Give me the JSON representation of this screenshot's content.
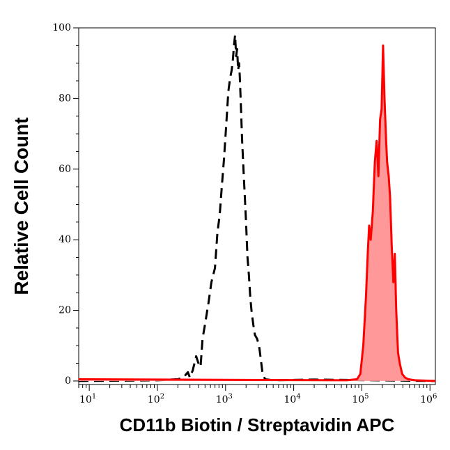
{
  "chart_data": {
    "type": "histogram",
    "title": "",
    "xlabel": "CD11b Biotin / Streptavidin APC",
    "ylabel": "Relative Cell Count",
    "xscale": "log",
    "xlim": [
      7,
      1200000
    ],
    "ylim": [
      -1,
      100
    ],
    "x_ticks": [
      {
        "base": "10",
        "exp": "1",
        "value": 10
      },
      {
        "base": "10",
        "exp": "2",
        "value": 100
      },
      {
        "base": "10",
        "exp": "3",
        "value": 1000
      },
      {
        "base": "10",
        "exp": "4",
        "value": 10000
      },
      {
        "base": "10",
        "exp": "5",
        "value": 100000
      },
      {
        "base": "10",
        "exp": "6",
        "value": 1000000
      }
    ],
    "y_ticks": [
      "0",
      "20",
      "40",
      "60",
      "80",
      "100"
    ],
    "grid": false,
    "series": [
      {
        "style": "dashed",
        "color": "#000000",
        "fill": "none",
        "points": [
          [
            7,
            0
          ],
          [
            100,
            0.2
          ],
          [
            200,
            0.5
          ],
          [
            240,
            1
          ],
          [
            280,
            2.5
          ],
          [
            300,
            1
          ],
          [
            330,
            3
          ],
          [
            370,
            7
          ],
          [
            400,
            5
          ],
          [
            430,
            4
          ],
          [
            460,
            12
          ],
          [
            500,
            16
          ],
          [
            560,
            22
          ],
          [
            620,
            28
          ],
          [
            700,
            32
          ],
          [
            760,
            42
          ],
          [
            820,
            47
          ],
          [
            880,
            55
          ],
          [
            950,
            63
          ],
          [
            1020,
            72
          ],
          [
            1100,
            82
          ],
          [
            1170,
            86
          ],
          [
            1230,
            88
          ],
          [
            1280,
            91
          ],
          [
            1330,
            95
          ],
          [
            1380,
            98
          ],
          [
            1430,
            92
          ],
          [
            1480,
            94
          ],
          [
            1530,
            88
          ],
          [
            1580,
            90
          ],
          [
            1620,
            86
          ],
          [
            1680,
            78
          ],
          [
            1750,
            68
          ],
          [
            1830,
            60
          ],
          [
            1920,
            52
          ],
          [
            2000,
            45
          ],
          [
            2100,
            35
          ],
          [
            2200,
            30
          ],
          [
            2300,
            24
          ],
          [
            2400,
            20
          ],
          [
            2550,
            16
          ],
          [
            2700,
            13
          ],
          [
            2900,
            12
          ],
          [
            3100,
            10
          ],
          [
            3300,
            6
          ],
          [
            3500,
            2
          ],
          [
            3800,
            0.5
          ],
          [
            5000,
            0.2
          ],
          [
            20000,
            0.4
          ],
          [
            60000,
            0.3
          ],
          [
            1200000,
            0
          ]
        ]
      },
      {
        "style": "solid",
        "color": "#ff0000",
        "fill": "#ff9999",
        "points": [
          [
            7,
            0.5
          ],
          [
            60000,
            0.2
          ],
          [
            85000,
            0.5
          ],
          [
            95000,
            2
          ],
          [
            105000,
            10
          ],
          [
            115000,
            24
          ],
          [
            122000,
            36
          ],
          [
            128000,
            44
          ],
          [
            135000,
            40
          ],
          [
            145000,
            48
          ],
          [
            155000,
            62
          ],
          [
            165000,
            68
          ],
          [
            175000,
            58
          ],
          [
            185000,
            74
          ],
          [
            195000,
            77
          ],
          [
            205000,
            95
          ],
          [
            215000,
            80
          ],
          [
            225000,
            70
          ],
          [
            235000,
            62
          ],
          [
            248000,
            58
          ],
          [
            260000,
            52
          ],
          [
            275000,
            38
          ],
          [
            290000,
            28
          ],
          [
            305000,
            36
          ],
          [
            320000,
            20
          ],
          [
            340000,
            8
          ],
          [
            360000,
            5
          ],
          [
            390000,
            2
          ],
          [
            430000,
            1
          ],
          [
            480000,
            0.5
          ],
          [
            600000,
            0.2
          ],
          [
            1200000,
            0
          ]
        ]
      }
    ]
  }
}
